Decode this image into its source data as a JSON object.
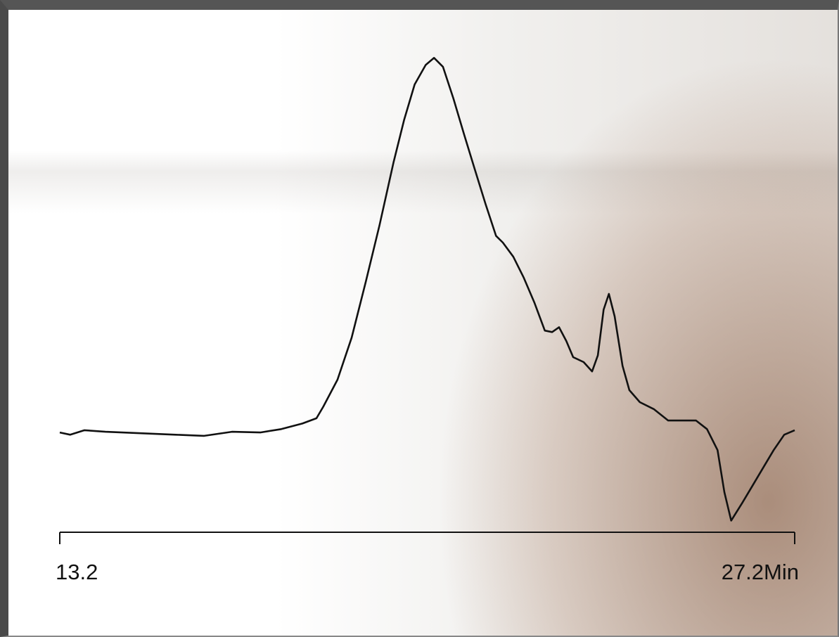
{
  "chart_data": {
    "type": "line",
    "x": [
      13.2,
      13.4,
      13.67,
      14.07,
      14.74,
      15.41,
      15.95,
      16.48,
      17.02,
      17.42,
      17.82,
      18.09,
      18.22,
      18.49,
      18.76,
      19.03,
      19.29,
      19.56,
      19.76,
      19.96,
      20.17,
      20.33,
      20.5,
      20.7,
      20.9,
      21.1,
      21.31,
      21.51,
      21.64,
      21.84,
      22.04,
      22.24,
      22.44,
      22.58,
      22.71,
      22.85,
      22.98,
      23.18,
      23.34,
      23.45,
      23.56,
      23.66,
      23.77,
      23.92,
      24.05,
      24.25,
      24.52,
      24.79,
      25.06,
      25.32,
      25.53,
      25.73,
      25.86,
      25.99,
      26.2,
      26.4,
      26.6,
      26.8,
      27.0,
      27.2
    ],
    "series": [
      {
        "color": "#111111",
        "values": [
          0,
          -0.6,
          0.6,
          0.2,
          -0.2,
          -0.6,
          -0.9,
          0.2,
          0,
          0.9,
          2.4,
          3.8,
          6.9,
          14.1,
          25.3,
          40.3,
          55.3,
          72.2,
          83.5,
          92.9,
          98.1,
          100,
          97.6,
          89.1,
          79.7,
          70.5,
          61.0,
          52.5,
          50.7,
          46.9,
          41.3,
          34.7,
          27.2,
          26.8,
          28.1,
          24.4,
          20.1,
          18.8,
          16.3,
          20.6,
          32.8,
          37.0,
          31.0,
          17.8,
          11.3,
          8.1,
          6.2,
          3.2,
          3.2,
          3.2,
          0.9,
          -4.7,
          -15.9,
          -23.5,
          -18.8,
          -14.1,
          -9.4,
          -4.7,
          -0.6,
          0.6
        ]
      }
    ],
    "xlim": [
      13.2,
      27.2
    ],
    "xticks": [
      13.2,
      {
        "value": 27.2,
        "label": "27.2Min"
      }
    ],
    "ylim": [
      -30,
      110
    ],
    "grid": false
  }
}
